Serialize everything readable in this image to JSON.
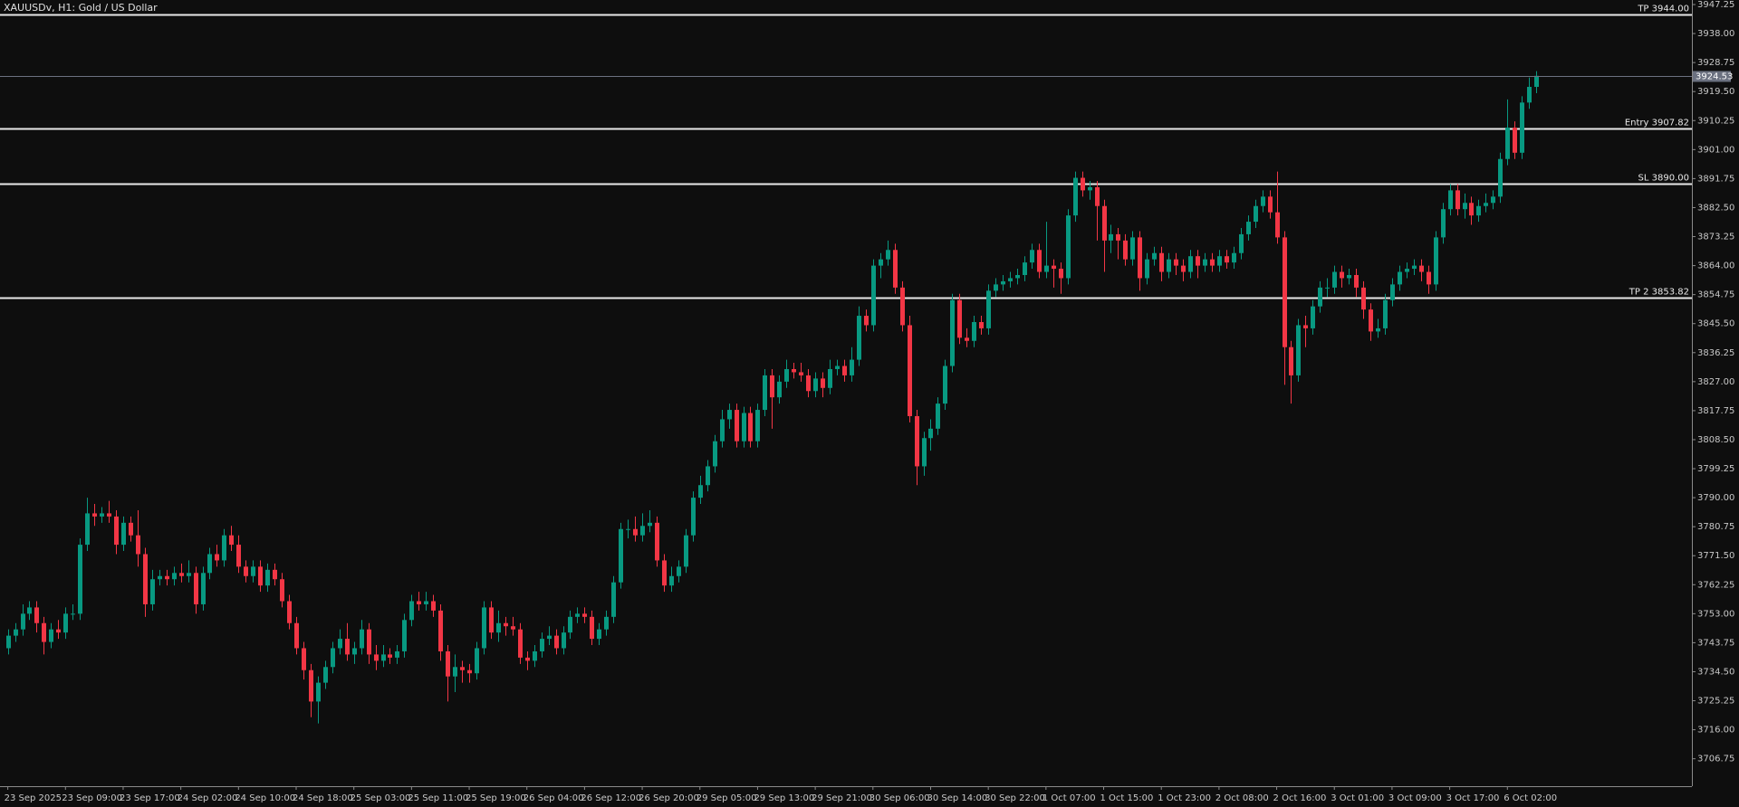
{
  "chart_data": {
    "type": "candlestick",
    "title": "XAUUSDv, H1:  Gold / US Dollar",
    "colors": {
      "up": "#089981",
      "down": "#f23645",
      "level": "#e8e8e8",
      "price": "#6b7180"
    },
    "ylim": [
      3698,
      3948.7
    ],
    "yticks": [
      3947.25,
      {
        "value": 3938.0,
        "label": "3938.00"
      },
      3928.75,
      {
        "value": 3919.5,
        "label": "3919.50"
      },
      3910.25,
      {
        "value": 3901.0,
        "label": "3901.00"
      },
      3891.75,
      {
        "value": 3882.5,
        "label": "3882.50"
      },
      3873.25,
      {
        "value": 3864.0,
        "label": "3864.00"
      },
      3854.75,
      {
        "value": 3845.5,
        "label": "3845.50"
      },
      3836.25,
      {
        "value": 3827.0,
        "label": "3827.00"
      },
      3817.75,
      {
        "value": 3808.5,
        "label": "3808.50"
      },
      3799.25,
      {
        "value": 3790.0,
        "label": "3790.00"
      },
      3780.75,
      {
        "value": 3771.5,
        "label": "3771.50"
      },
      3762.25,
      {
        "value": 3753.0,
        "label": "3753.00"
      },
      3743.75,
      {
        "value": 3734.5,
        "label": "3734.50"
      },
      3725.25,
      {
        "value": 3716.0,
        "label": "3716.00"
      },
      3706.75
    ],
    "levels": [
      {
        "label": "TP 3944.00",
        "value": 3944.0
      },
      {
        "label": "Entry 3907.82",
        "value": 3907.82
      },
      {
        "label": "SL 3890.00",
        "value": 3890.0
      },
      {
        "label": "TP 2 3853.82",
        "value": 3853.82
      }
    ],
    "categories": [
      "23 Sep 2025",
      null,
      null,
      null,
      null,
      null,
      null,
      null,
      "23 Sep 09:00",
      null,
      null,
      null,
      null,
      null,
      null,
      null,
      "23 Sep 17:00",
      null,
      null,
      null,
      null,
      null,
      null,
      null,
      "24 Sep 02:00",
      null,
      null,
      null,
      null,
      null,
      null,
      null,
      "24 Sep 10:00",
      null,
      null,
      null,
      null,
      null,
      null,
      null,
      "24 Sep 18:00",
      null,
      null,
      null,
      null,
      null,
      null,
      null,
      "25 Sep 03:00",
      null,
      null,
      null,
      null,
      null,
      null,
      null,
      "25 Sep 11:00",
      null,
      null,
      null,
      null,
      null,
      null,
      null,
      "25 Sep 19:00",
      null,
      null,
      null,
      null,
      null,
      null,
      null,
      "26 Sep 04:00",
      null,
      null,
      null,
      null,
      null,
      null,
      null,
      "26 Sep 12:00",
      null,
      null,
      null,
      null,
      null,
      null,
      null,
      "26 Sep 20:00",
      null,
      null,
      null,
      null,
      null,
      null,
      null,
      "29 Sep 05:00",
      null,
      null,
      null,
      null,
      null,
      null,
      null,
      "29 Sep 13:00",
      null,
      null,
      null,
      null,
      null,
      null,
      null,
      "29 Sep 21:00",
      null,
      null,
      null,
      null,
      null,
      null,
      null,
      "30 Sep 06:00",
      null,
      null,
      null,
      null,
      null,
      null,
      null,
      "30 Sep 14:00",
      null,
      null,
      null,
      null,
      null,
      null,
      null,
      "30 Sep 22:00",
      null,
      null,
      null,
      null,
      null,
      null,
      null,
      "1 Oct 07:00",
      null,
      null,
      null,
      null,
      null,
      null,
      null,
      "1 Oct 15:00",
      null,
      null,
      null,
      null,
      null,
      null,
      null,
      "1 Oct 23:00",
      null,
      null,
      null,
      null,
      null,
      null,
      null,
      "2 Oct 08:00",
      null,
      null,
      null,
      null,
      null,
      null,
      null,
      "2 Oct 16:00",
      null,
      null,
      null,
      null,
      null,
      null,
      null,
      "3 Oct 01:00",
      null,
      null,
      null,
      null,
      null,
      null,
      null,
      "3 Oct 09:00",
      null,
      null,
      null,
      null,
      null,
      null,
      null,
      "3 Oct 17:00",
      null,
      null,
      null,
      null,
      null,
      null,
      null,
      "6 Oct 02:00",
      null,
      null,
      null,
      null
    ],
    "open": [
      3742,
      3746,
      3748,
      3753,
      3755,
      3750,
      3744,
      3748,
      3747,
      3753,
      3753,
      3775,
      3785,
      3784,
      3785,
      3784,
      3775,
      3782,
      3778,
      3772,
      3756,
      3764,
      3765,
      3764,
      3766,
      3765,
      3766,
      3756,
      3766,
      3772,
      3770,
      3778,
      3775,
      3768,
      3765,
      3768,
      3762,
      3767,
      3764,
      3757,
      3750,
      3742,
      3735,
      3725,
      3731,
      3736,
      3742,
      3745,
      3740,
      3742,
      3748,
      3740,
      3738,
      3740,
      3739,
      3741,
      3751,
      3757,
      3756,
      3757,
      3754,
      3741,
      3733,
      3736,
      3735,
      3734,
      3742,
      3755,
      3747,
      3750,
      3749,
      3748,
      3739,
      3738,
      3741,
      3745,
      3746,
      3742,
      3747,
      3752,
      3753,
      3752,
      3745,
      3748,
      3752,
      3763,
      3780,
      3780,
      3778,
      3781,
      3782,
      3770,
      3762,
      3765,
      3768,
      3778,
      3790,
      3794,
      3800,
      3808,
      3815,
      3818,
      3808,
      3817,
      3808,
      3818,
      3829,
      3822,
      3827,
      3831,
      3830,
      3829,
      3824,
      3828,
      3825,
      3831,
      3832,
      3829,
      3834,
      3848,
      3845,
      3864,
      3866,
      3869,
      3857,
      3845,
      3816,
      3800,
      3809,
      3812,
      3820,
      3832,
      3853,
      3841,
      3840,
      3846,
      3844,
      3856,
      3858,
      3859,
      3860,
      3861,
      3865,
      3869,
      3862,
      3864,
      3863,
      3860,
      3880,
      3892,
      3888,
      3889,
      3883,
      3872,
      3874,
      3872,
      3866,
      3873,
      3860,
      3866,
      3868,
      3862,
      3866,
      3864,
      3862,
      3867,
      3864,
      3866,
      3864,
      3867,
      3865,
      3868,
      3874,
      3878,
      3883,
      3886,
      3881,
      3873,
      3838,
      3829,
      3845,
      3844,
      3851,
      3857,
      3857,
      3862,
      3860,
      3861,
      3857,
      3850,
      3843,
      3844,
      3853,
      3858,
      3862,
      3863,
      3864,
      3862,
      3858,
      3873,
      3882,
      3888,
      3882,
      3884,
      3880,
      3883,
      3884,
      3886,
      3898,
      3908,
      3900,
      3916,
      3921
    ],
    "high": [
      3748,
      3750,
      3756,
      3757,
      3757,
      3752,
      3750,
      3751,
      3755,
      3756,
      3777,
      3790,
      3788,
      3787,
      3789,
      3786,
      3784,
      3784,
      3786,
      3774,
      3767,
      3767,
      3767,
      3768,
      3769,
      3770,
      3768,
      3768,
      3774,
      3775,
      3780,
      3781,
      3778,
      3770,
      3770,
      3770,
      3769,
      3769,
      3766,
      3759,
      3752,
      3744,
      3737,
      3733,
      3738,
      3744,
      3748,
      3750,
      3744,
      3751,
      3750,
      3743,
      3743,
      3742,
      3743,
      3753,
      3759,
      3760,
      3760,
      3759,
      3756,
      3743,
      3740,
      3738,
      3737,
      3744,
      3757,
      3757,
      3754,
      3752,
      3752,
      3750,
      3741,
      3743,
      3747,
      3749,
      3748,
      3749,
      3754,
      3755,
      3755,
      3754,
      3750,
      3754,
      3765,
      3782,
      3783,
      3784,
      3785,
      3786,
      3784,
      3772,
      3768,
      3770,
      3780,
      3792,
      3797,
      3802,
      3810,
      3818,
      3820,
      3820,
      3819,
      3819,
      3820,
      3831,
      3831,
      3829,
      3834,
      3833,
      3833,
      3831,
      3830,
      3830,
      3834,
      3834,
      3834,
      3838,
      3851,
      3850,
      3866,
      3868,
      3872,
      3871,
      3859,
      3848,
      3818,
      3811,
      3815,
      3822,
      3834,
      3855,
      3855,
      3844,
      3848,
      3848,
      3858,
      3860,
      3861,
      3862,
      3863,
      3867,
      3871,
      3871,
      3878,
      3866,
      3865,
      3882,
      3894,
      3894,
      3891,
      3891,
      3885,
      3877,
      3876,
      3874,
      3875,
      3875,
      3868,
      3870,
      3870,
      3868,
      3868,
      3866,
      3869,
      3869,
      3868,
      3868,
      3869,
      3869,
      3870,
      3876,
      3880,
      3885,
      3888,
      3888,
      3894,
      3875,
      3840,
      3847,
      3848,
      3853,
      3859,
      3860,
      3864,
      3864,
      3863,
      3863,
      3859,
      3852,
      3847,
      3855,
      3860,
      3864,
      3865,
      3866,
      3866,
      3864,
      3875,
      3884,
      3890,
      3890,
      3887,
      3886,
      3885,
      3887,
      3888,
      3900,
      3917,
      3910,
      3918,
      3924,
      3926
    ],
    "low": [
      3740,
      3744,
      3746,
      3751,
      3747,
      3740,
      3742,
      3745,
      3745,
      3751,
      3751,
      3773,
      3781,
      3782,
      3782,
      3772,
      3773,
      3776,
      3768,
      3752,
      3754,
      3762,
      3762,
      3762,
      3763,
      3763,
      3753,
      3754,
      3764,
      3768,
      3768,
      3773,
      3766,
      3763,
      3763,
      3760,
      3760,
      3762,
      3755,
      3748,
      3740,
      3732,
      3720,
      3718,
      3729,
      3734,
      3740,
      3738,
      3737,
      3740,
      3737,
      3735,
      3736,
      3737,
      3737,
      3739,
      3749,
      3754,
      3754,
      3752,
      3738,
      3725,
      3728,
      3731,
      3731,
      3732,
      3740,
      3745,
      3744,
      3746,
      3746,
      3737,
      3735,
      3736,
      3739,
      3743,
      3740,
      3740,
      3745,
      3750,
      3750,
      3743,
      3743,
      3746,
      3750,
      3761,
      3777,
      3776,
      3776,
      3779,
      3768,
      3760,
      3760,
      3763,
      3766,
      3776,
      3788,
      3792,
      3798,
      3806,
      3812,
      3806,
      3806,
      3806,
      3806,
      3816,
      3812,
      3820,
      3825,
      3828,
      3827,
      3822,
      3822,
      3822,
      3823,
      3829,
      3827,
      3827,
      3832,
      3843,
      3843,
      3860,
      3864,
      3855,
      3843,
      3814,
      3794,
      3797,
      3805,
      3810,
      3818,
      3830,
      3839,
      3838,
      3838,
      3842,
      3842,
      3854,
      3856,
      3857,
      3858,
      3859,
      3863,
      3860,
      3860,
      3857,
      3855,
      3858,
      3878,
      3886,
      3885,
      3872,
      3862,
      3868,
      3866,
      3864,
      3864,
      3856,
      3858,
      3864,
      3859,
      3860,
      3861,
      3859,
      3860,
      3860,
      3862,
      3862,
      3862,
      3863,
      3863,
      3866,
      3872,
      3876,
      3881,
      3879,
      3871,
      3826,
      3820,
      3827,
      3838,
      3842,
      3849,
      3854,
      3855,
      3857,
      3858,
      3854,
      3847,
      3840,
      3841,
      3842,
      3851,
      3856,
      3860,
      3861,
      3859,
      3855,
      3856,
      3871,
      3880,
      3880,
      3879,
      3877,
      3878,
      3881,
      3882,
      3884,
      3896,
      3898,
      3898,
      3914,
      3919
    ],
    "close": [
      3746,
      3748,
      3753,
      3755,
      3750,
      3744,
      3748,
      3747,
      3753,
      3753,
      3775,
      3785,
      3784,
      3785,
      3784,
      3775,
      3782,
      3778,
      3772,
      3756,
      3764,
      3765,
      3764,
      3766,
      3765,
      3766,
      3756,
      3766,
      3772,
      3770,
      3778,
      3775,
      3768,
      3765,
      3768,
      3762,
      3767,
      3764,
      3757,
      3750,
      3742,
      3735,
      3725,
      3731,
      3736,
      3742,
      3745,
      3740,
      3742,
      3748,
      3740,
      3738,
      3740,
      3739,
      3741,
      3751,
      3757,
      3756,
      3757,
      3754,
      3741,
      3733,
      3736,
      3735,
      3734,
      3742,
      3755,
      3747,
      3750,
      3749,
      3748,
      3739,
      3738,
      3741,
      3745,
      3746,
      3742,
      3747,
      3752,
      3753,
      3752,
      3745,
      3748,
      3752,
      3763,
      3780,
      3780,
      3778,
      3781,
      3782,
      3770,
      3762,
      3765,
      3768,
      3778,
      3790,
      3794,
      3800,
      3808,
      3815,
      3818,
      3808,
      3817,
      3808,
      3818,
      3829,
      3822,
      3827,
      3831,
      3830,
      3829,
      3824,
      3828,
      3825,
      3831,
      3832,
      3829,
      3834,
      3848,
      3845,
      3864,
      3866,
      3869,
      3857,
      3845,
      3816,
      3800,
      3809,
      3812,
      3820,
      3832,
      3853,
      3841,
      3840,
      3846,
      3844,
      3856,
      3858,
      3859,
      3860,
      3861,
      3865,
      3869,
      3862,
      3864,
      3863,
      3860,
      3880,
      3892,
      3888,
      3889,
      3883,
      3872,
      3874,
      3872,
      3866,
      3873,
      3860,
      3866,
      3868,
      3862,
      3866,
      3864,
      3862,
      3867,
      3864,
      3866,
      3864,
      3867,
      3865,
      3868,
      3874,
      3878,
      3883,
      3886,
      3881,
      3873,
      3838,
      3829,
      3845,
      3844,
      3851,
      3857,
      3857,
      3862,
      3860,
      3861,
      3857,
      3850,
      3843,
      3844,
      3853,
      3858,
      3862,
      3863,
      3864,
      3862,
      3858,
      3873,
      3882,
      3888,
      3882,
      3884,
      3880,
      3883,
      3884,
      3886,
      3898,
      3908,
      3900,
      3916,
      3921,
      3924.53
    ]
  }
}
